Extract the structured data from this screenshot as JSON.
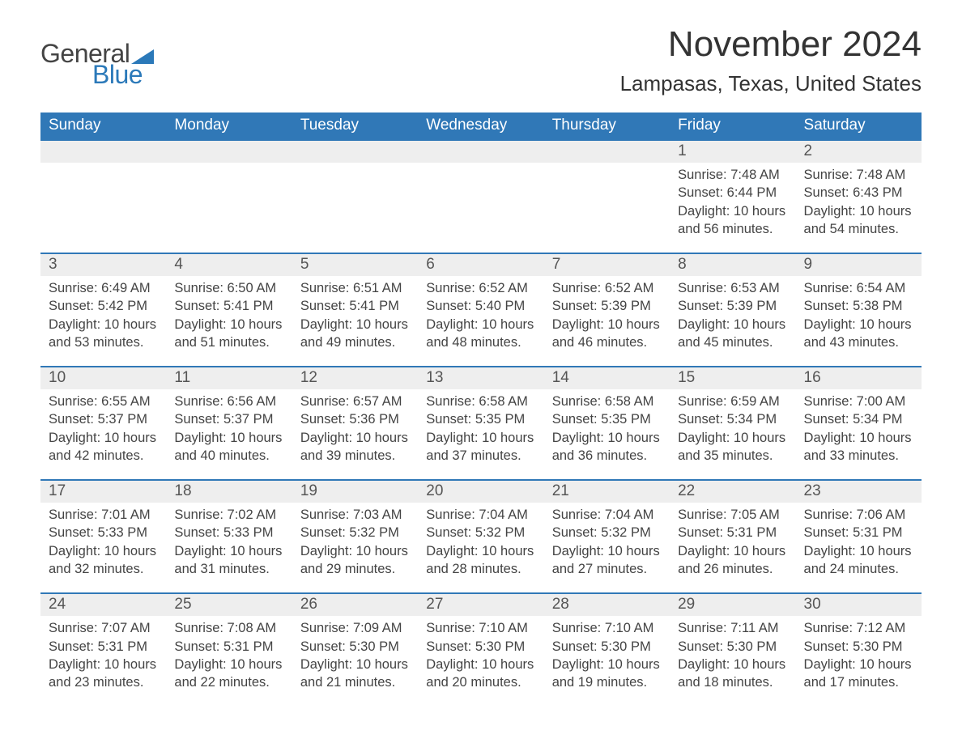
{
  "brand": {
    "word1": "General",
    "word2": "Blue",
    "logo_color": "#2b79b9"
  },
  "header": {
    "month_title": "November 2024",
    "location": "Lampasas, Texas, United States"
  },
  "colors": {
    "header_bg": "#3078b7",
    "header_text": "#ffffff",
    "daynum_bg": "#eeeeee",
    "body_text": "#444444",
    "title_text": "#333333"
  },
  "weekday_labels": [
    "Sunday",
    "Monday",
    "Tuesday",
    "Wednesday",
    "Thursday",
    "Friday",
    "Saturday"
  ],
  "labels": {
    "sunrise": "Sunrise:",
    "sunset": "Sunset:",
    "daylight": "Daylight:"
  },
  "weeks": [
    [
      null,
      null,
      null,
      null,
      null,
      {
        "day": "1",
        "sunrise": "7:48 AM",
        "sunset": "6:44 PM",
        "daylight": "10 hours and 56 minutes."
      },
      {
        "day": "2",
        "sunrise": "7:48 AM",
        "sunset": "6:43 PM",
        "daylight": "10 hours and 54 minutes."
      }
    ],
    [
      {
        "day": "3",
        "sunrise": "6:49 AM",
        "sunset": "5:42 PM",
        "daylight": "10 hours and 53 minutes."
      },
      {
        "day": "4",
        "sunrise": "6:50 AM",
        "sunset": "5:41 PM",
        "daylight": "10 hours and 51 minutes."
      },
      {
        "day": "5",
        "sunrise": "6:51 AM",
        "sunset": "5:41 PM",
        "daylight": "10 hours and 49 minutes."
      },
      {
        "day": "6",
        "sunrise": "6:52 AM",
        "sunset": "5:40 PM",
        "daylight": "10 hours and 48 minutes."
      },
      {
        "day": "7",
        "sunrise": "6:52 AM",
        "sunset": "5:39 PM",
        "daylight": "10 hours and 46 minutes."
      },
      {
        "day": "8",
        "sunrise": "6:53 AM",
        "sunset": "5:39 PM",
        "daylight": "10 hours and 45 minutes."
      },
      {
        "day": "9",
        "sunrise": "6:54 AM",
        "sunset": "5:38 PM",
        "daylight": "10 hours and 43 minutes."
      }
    ],
    [
      {
        "day": "10",
        "sunrise": "6:55 AM",
        "sunset": "5:37 PM",
        "daylight": "10 hours and 42 minutes."
      },
      {
        "day": "11",
        "sunrise": "6:56 AM",
        "sunset": "5:37 PM",
        "daylight": "10 hours and 40 minutes."
      },
      {
        "day": "12",
        "sunrise": "6:57 AM",
        "sunset": "5:36 PM",
        "daylight": "10 hours and 39 minutes."
      },
      {
        "day": "13",
        "sunrise": "6:58 AM",
        "sunset": "5:35 PM",
        "daylight": "10 hours and 37 minutes."
      },
      {
        "day": "14",
        "sunrise": "6:58 AM",
        "sunset": "5:35 PM",
        "daylight": "10 hours and 36 minutes."
      },
      {
        "day": "15",
        "sunrise": "6:59 AM",
        "sunset": "5:34 PM",
        "daylight": "10 hours and 35 minutes."
      },
      {
        "day": "16",
        "sunrise": "7:00 AM",
        "sunset": "5:34 PM",
        "daylight": "10 hours and 33 minutes."
      }
    ],
    [
      {
        "day": "17",
        "sunrise": "7:01 AM",
        "sunset": "5:33 PM",
        "daylight": "10 hours and 32 minutes."
      },
      {
        "day": "18",
        "sunrise": "7:02 AM",
        "sunset": "5:33 PM",
        "daylight": "10 hours and 31 minutes."
      },
      {
        "day": "19",
        "sunrise": "7:03 AM",
        "sunset": "5:32 PM",
        "daylight": "10 hours and 29 minutes."
      },
      {
        "day": "20",
        "sunrise": "7:04 AM",
        "sunset": "5:32 PM",
        "daylight": "10 hours and 28 minutes."
      },
      {
        "day": "21",
        "sunrise": "7:04 AM",
        "sunset": "5:32 PM",
        "daylight": "10 hours and 27 minutes."
      },
      {
        "day": "22",
        "sunrise": "7:05 AM",
        "sunset": "5:31 PM",
        "daylight": "10 hours and 26 minutes."
      },
      {
        "day": "23",
        "sunrise": "7:06 AM",
        "sunset": "5:31 PM",
        "daylight": "10 hours and 24 minutes."
      }
    ],
    [
      {
        "day": "24",
        "sunrise": "7:07 AM",
        "sunset": "5:31 PM",
        "daylight": "10 hours and 23 minutes."
      },
      {
        "day": "25",
        "sunrise": "7:08 AM",
        "sunset": "5:31 PM",
        "daylight": "10 hours and 22 minutes."
      },
      {
        "day": "26",
        "sunrise": "7:09 AM",
        "sunset": "5:30 PM",
        "daylight": "10 hours and 21 minutes."
      },
      {
        "day": "27",
        "sunrise": "7:10 AM",
        "sunset": "5:30 PM",
        "daylight": "10 hours and 20 minutes."
      },
      {
        "day": "28",
        "sunrise": "7:10 AM",
        "sunset": "5:30 PM",
        "daylight": "10 hours and 19 minutes."
      },
      {
        "day": "29",
        "sunrise": "7:11 AM",
        "sunset": "5:30 PM",
        "daylight": "10 hours and 18 minutes."
      },
      {
        "day": "30",
        "sunrise": "7:12 AM",
        "sunset": "5:30 PM",
        "daylight": "10 hours and 17 minutes."
      }
    ]
  ]
}
